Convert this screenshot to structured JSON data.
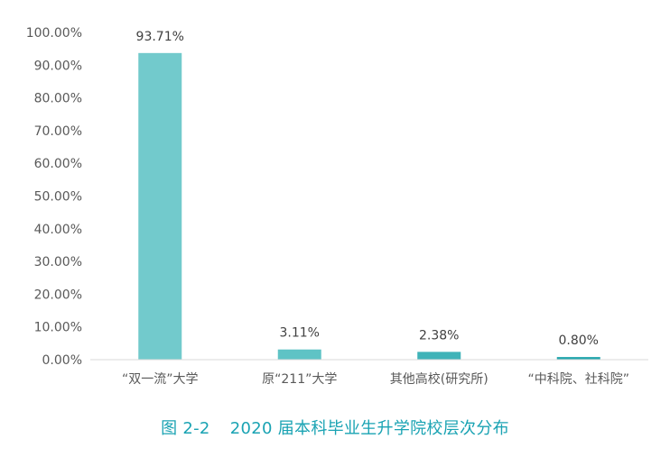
{
  "caption": {
    "figure_number": "图 2-2",
    "text": "2020 届本科毕业生升学院校层次分布"
  },
  "chart_data": {
    "type": "bar",
    "categories": [
      "“双一流”大学",
      "原“211”大学",
      "其他高校(研究所)",
      "“中科院、社科院”"
    ],
    "values": [
      93.71,
      3.11,
      2.38,
      0.8
    ],
    "data_labels": [
      "93.71%",
      "3.11%",
      "2.38%",
      "0.80%"
    ],
    "ylim": [
      0,
      100
    ],
    "yticks": [
      0,
      10,
      20,
      30,
      40,
      50,
      60,
      70,
      80,
      90,
      100
    ],
    "ytick_labels": [
      "0.00%",
      "10.00%",
      "20.00%",
      "30.00%",
      "40.00%",
      "50.00%",
      "60.00%",
      "70.00%",
      "80.00%",
      "90.00%",
      "100.00%"
    ],
    "bar_colors": [
      "#72cacc",
      "#5fc3c5",
      "#3fb3b8",
      "#23a6ad"
    ],
    "grid": false,
    "legend": "none"
  }
}
